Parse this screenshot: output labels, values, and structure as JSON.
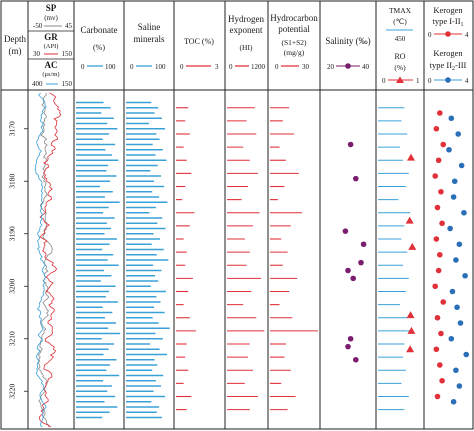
{
  "chart_data": {
    "type": "well-log",
    "depth_axis": {
      "label": "Depth",
      "unit": "(m)",
      "ticks": [
        3170,
        3180,
        3190,
        3200,
        3210,
        3220
      ],
      "range": [
        3163,
        3227
      ]
    },
    "colors": {
      "blue": "#3aa0d8",
      "red": "#e0313a",
      "purple": "#7a1d6e",
      "gray": "#888888",
      "frame": "#222222"
    },
    "tracks": {
      "curves": {
        "sp": {
          "label": "SP",
          "unit": "(mv)",
          "min": "-50",
          "max": "45"
        },
        "gr": {
          "label": "GR",
          "unit": "(API)",
          "min": "30",
          "max": "150"
        },
        "ac": {
          "label": "AC",
          "unit": "(μs/m)",
          "min": "400",
          "max": "150"
        }
      },
      "carbonate": {
        "label": "Carbonate",
        "unit": "(%)",
        "min": "0",
        "max": "100"
      },
      "saline": {
        "label1": "Saline",
        "label2": "minerals",
        "min": "0",
        "max": "100"
      },
      "toc": {
        "label": "TOC (%)",
        "min": "0",
        "max": "3"
      },
      "hi": {
        "label1": "Hydrogen",
        "label2": "exponent",
        "unit": "(HI)",
        "min": "0",
        "max": "1200"
      },
      "s1s2": {
        "label1": "Hydrocarbon",
        "label2": "potential",
        "label3": "(S1+S2)",
        "unit": "(mg/g)",
        "min": "0",
        "max": "30"
      },
      "salinity": {
        "label": "Salinity (‰)",
        "min": "20",
        "max": "40"
      },
      "tmax": {
        "label": "TMAX",
        "unit": "(℃)",
        "min": "450",
        "max": "",
        "ro_label": "RO",
        "ro_unit": "(%)",
        "ro_min": "0",
        "ro_max": "1"
      },
      "kerogen": {
        "label_top1": "Kerogen",
        "label_top2": "type I-II",
        "top_sub": "1",
        "top_min": "0",
        "top_max": "4",
        "label_bot1": "Kerogen",
        "label_bot2": "type II",
        "bot_sub": "2",
        "bot_suffix": "-III",
        "bot_min": "0",
        "bot_max": "4"
      }
    },
    "series": {
      "carbonate": {
        "depths": [
          3165,
          3166,
          3167,
          3168,
          3169,
          3170,
          3171,
          3172,
          3173,
          3174,
          3175,
          3176,
          3177,
          3178,
          3179,
          3180,
          3181,
          3182,
          3183,
          3184,
          3185,
          3186,
          3187,
          3188,
          3189,
          3190,
          3191,
          3192,
          3193,
          3194,
          3195,
          3196,
          3197,
          3198,
          3199,
          3200,
          3201,
          3202,
          3203,
          3204,
          3205,
          3206,
          3207,
          3208,
          3209,
          3210,
          3211,
          3212,
          3213,
          3214,
          3215,
          3216,
          3217,
          3218,
          3219,
          3220,
          3221,
          3222,
          3223,
          3224,
          3225
        ],
        "values": [
          60,
          75,
          55,
          82,
          68,
          90,
          72,
          58,
          85,
          64,
          78,
          92,
          70,
          66,
          88,
          74,
          52,
          80,
          63,
          95,
          71,
          59,
          84,
          67,
          76,
          62,
          89,
          73,
          57,
          81,
          69,
          93,
          61,
          77,
          54,
          86,
          72,
          65,
          91,
          58,
          79,
          63,
          87,
          70,
          96,
          56,
          83,
          71,
          60,
          88,
          74,
          66,
          94,
          59,
          78,
          68,
          85,
          62,
          90,
          73,
          57
        ]
      },
      "saline": {
        "depths": [
          3165,
          3166,
          3167,
          3168,
          3169,
          3170,
          3171,
          3172,
          3173,
          3174,
          3175,
          3176,
          3177,
          3178,
          3179,
          3180,
          3181,
          3182,
          3183,
          3184,
          3185,
          3186,
          3187,
          3188,
          3189,
          3190,
          3191,
          3192,
          3193,
          3194,
          3195,
          3196,
          3197,
          3198,
          3199,
          3200,
          3201,
          3202,
          3203,
          3204,
          3205,
          3206,
          3207,
          3208,
          3209,
          3210,
          3211,
          3212,
          3213,
          3214,
          3215,
          3216,
          3217,
          3218,
          3219,
          3220,
          3221,
          3222,
          3223,
          3224,
          3225
        ],
        "values": [
          55,
          70,
          62,
          78,
          50,
          85,
          66,
          73,
          58,
          80,
          64,
          88,
          69,
          53,
          76,
          61,
          83,
          57,
          72,
          90,
          65,
          51,
          79,
          68,
          86,
          60,
          74,
          56,
          82,
          67,
          92,
          59,
          77,
          63,
          70,
          54,
          87,
          66,
          75,
          61,
          84,
          58,
          71,
          95,
          64,
          80,
          52,
          73,
          89,
          62,
          68,
          57,
          81,
          65,
          76,
          60,
          85,
          55,
          72,
          67,
          78
        ]
      },
      "toc": {
        "depths": [
          3166,
          3168.5,
          3171,
          3173.5,
          3176,
          3178.5,
          3181,
          3183.5,
          3186,
          3188.5,
          3191,
          3193.5,
          3196,
          3198.5,
          3201,
          3203.5,
          3206,
          3208.5,
          3211,
          3213.5,
          3216,
          3218.5,
          3221,
          3223.5
        ],
        "values": [
          0.8,
          0.6,
          0.9,
          0.5,
          0.7,
          1.0,
          0.6,
          0.4,
          1.2,
          0.9,
          0.5,
          0.7,
          0.6,
          1.1,
          0.8,
          0.5,
          0.9,
          1.3,
          0.7,
          0.6,
          0.8,
          0.5,
          1.0,
          0.7
        ]
      },
      "hi": {
        "depths": [
          3166,
          3168.5,
          3171,
          3173.5,
          3176,
          3178.5,
          3181,
          3183.5,
          3186,
          3188.5,
          3191,
          3193.5,
          3196,
          3198.5,
          3201,
          3203.5,
          3206,
          3208.5,
          3211,
          3213.5,
          3216,
          3218.5,
          3221,
          3223.5
        ],
        "values": [
          850,
          600,
          900,
          500,
          700,
          950,
          650,
          450,
          1000,
          800,
          550,
          700,
          600,
          1050,
          750,
          500,
          900,
          1150,
          700,
          650,
          800,
          550,
          950,
          700
        ]
      },
      "s1s2": {
        "depths": [
          3166,
          3168.5,
          3171,
          3173.5,
          3176,
          3178.5,
          3181,
          3183.5,
          3186,
          3188.5,
          3191,
          3193.5,
          3196,
          3198.5,
          3201,
          3203.5,
          3206,
          3208.5,
          3211,
          3213.5,
          3216,
          3218.5,
          3221,
          3223.5
        ],
        "values": [
          12,
          8,
          15,
          6,
          10,
          18,
          9,
          5,
          20,
          13,
          7,
          11,
          8,
          17,
          12,
          6,
          14,
          30,
          10,
          9,
          13,
          7,
          16,
          11
        ]
      },
      "salinity": {
        "depths": [
          3173,
          3179.5,
          3189.5,
          3192,
          3195.5,
          3197,
          3198.5,
          3210,
          3211.5,
          3214
        ],
        "values": [
          31,
          33,
          29,
          36,
          35,
          30,
          32,
          31,
          30,
          33
        ]
      },
      "tmax": {
        "depths": [
          3166,
          3168.5,
          3171,
          3173.5,
          3176,
          3178.5,
          3181,
          3183.5,
          3186,
          3188.5,
          3191,
          3193.5,
          3196,
          3198.5,
          3201,
          3203.5,
          3206,
          3208.5,
          3211,
          3213.5,
          3216,
          3218.5,
          3221,
          3223.5
        ],
        "values": [
          438,
          436,
          440,
          435,
          437,
          441,
          439,
          434,
          442,
          438,
          436,
          440,
          437,
          441,
          439,
          435,
          440,
          443,
          438,
          437,
          439,
          436,
          441,
          438
        ]
      },
      "ro": {
        "depths": [
          3175.5,
          3187.5,
          3192.5,
          3205.5,
          3208.5,
          3212
        ],
        "values": [
          0.75,
          0.72,
          0.78,
          0.74,
          0.76,
          0.73
        ]
      },
      "kerogen_a": {
        "depths": [
          3167,
          3170,
          3173,
          3176,
          3179,
          3182,
          3185,
          3188,
          3191,
          3194,
          3197,
          3200,
          3203,
          3206,
          3209,
          3212,
          3215,
          3218,
          3221
        ],
        "values": [
          1.2,
          0.9,
          1.5,
          1.1,
          0.8,
          1.3,
          1.0,
          1.4,
          0.9,
          1.2,
          1.1,
          0.8,
          1.5,
          1.0,
          1.3,
          0.9,
          1.2,
          1.4,
          1.0
        ]
      },
      "kerogen_b": {
        "depths": [
          3168,
          3171,
          3174,
          3177,
          3180,
          3183,
          3186,
          3189,
          3192,
          3195,
          3198,
          3201,
          3204,
          3207,
          3210,
          3213,
          3216,
          3219,
          3222
        ],
        "values": [
          2.2,
          2.8,
          2.0,
          3.1,
          2.5,
          2.4,
          3.3,
          2.1,
          2.9,
          2.6,
          3.4,
          2.3,
          2.7,
          3.0,
          2.2,
          3.5,
          2.6,
          2.9,
          2.4
        ]
      }
    }
  }
}
